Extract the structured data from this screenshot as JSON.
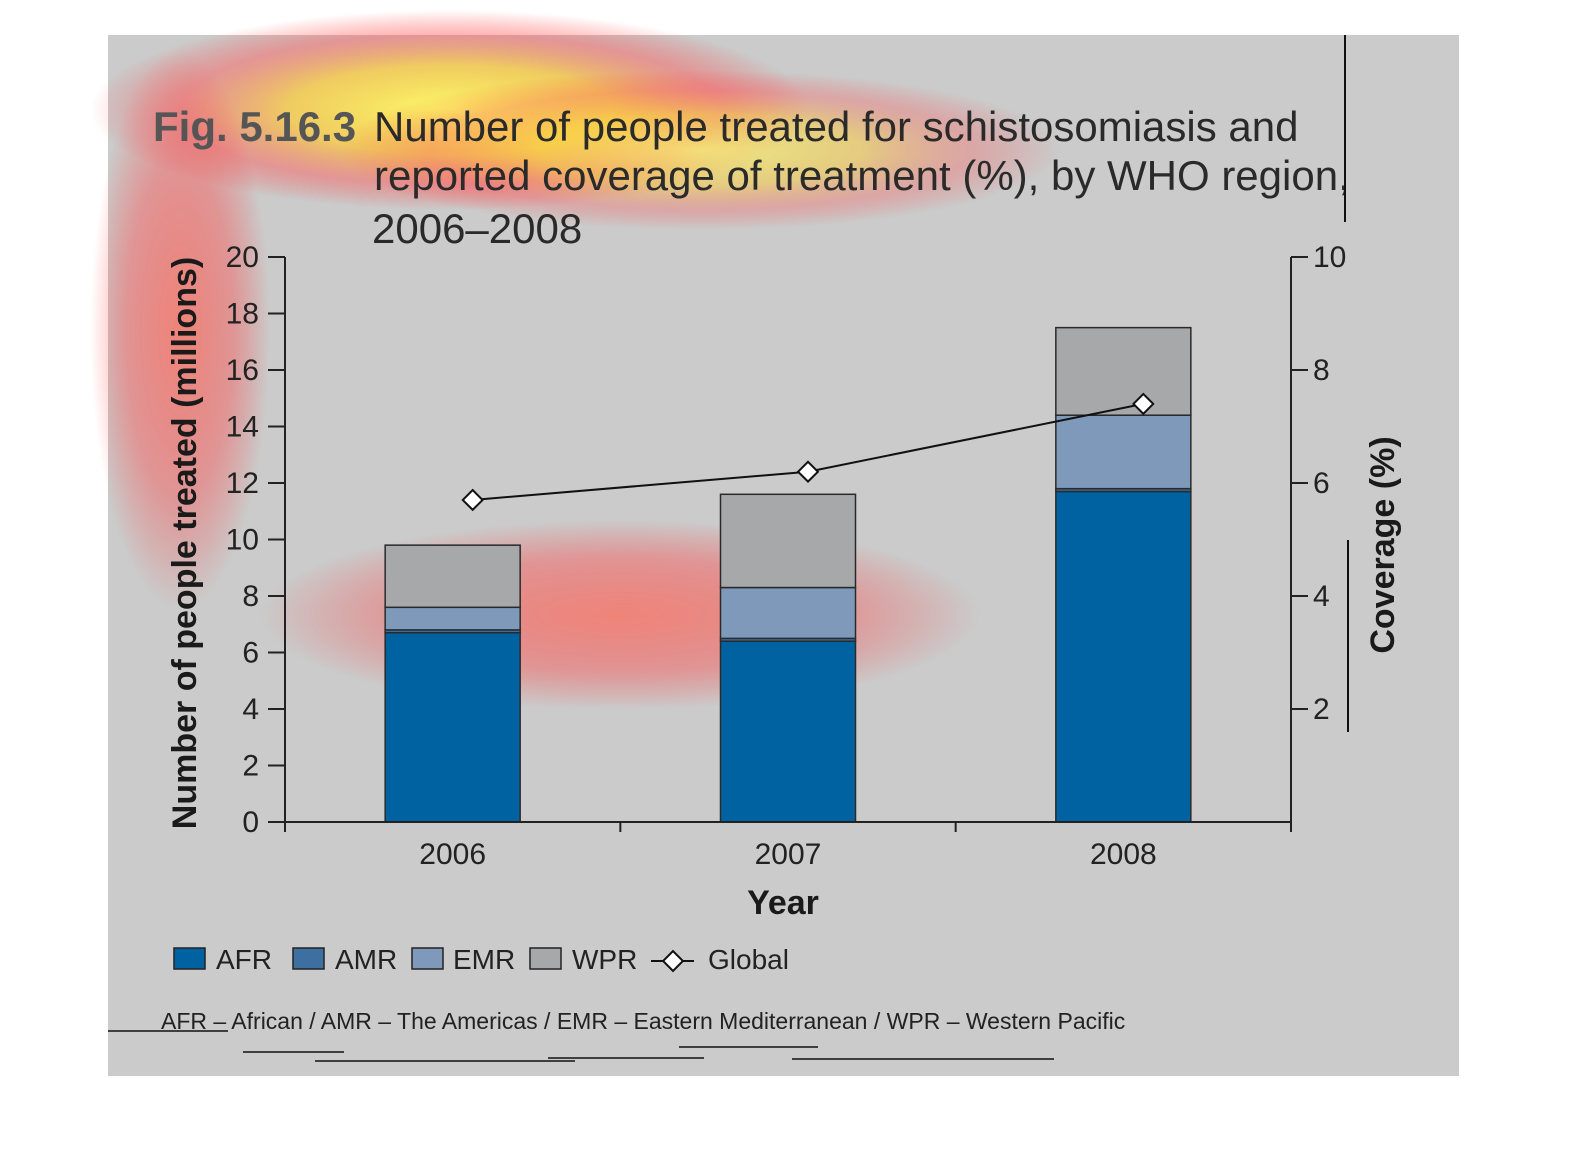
{
  "figure": {
    "number": "Fig. 5.16.3",
    "title_lines": [
      "Number of people treated for schistosomiasis and",
      "reported coverage of treatment (%), by WHO region,",
      "2006–2008"
    ],
    "footnote": "AFR – African / AMR – The Americas / EMR – Eastern Mediterranean / WPR – Western Pacific"
  },
  "chart_data": {
    "type": "bar",
    "stacked": true,
    "categories": [
      "2006",
      "2007",
      "2008"
    ],
    "xlabel": "Year",
    "ylabel": "Number of people treated (millions)",
    "y2label": "Coverage (%)",
    "ylim": [
      0,
      20
    ],
    "y2lim": [
      0,
      10
    ],
    "yticks": [
      0,
      2,
      4,
      6,
      8,
      10,
      12,
      14,
      16,
      18,
      20
    ],
    "y2ticks": [
      2,
      4,
      6,
      8,
      10
    ],
    "series": [
      {
        "name": "AFR",
        "color": "#0062a0",
        "values": [
          6.7,
          6.4,
          11.7
        ]
      },
      {
        "name": "AMR",
        "color": "#3d70a0",
        "values": [
          0.1,
          0.1,
          0.1
        ]
      },
      {
        "name": "EMR",
        "color": "#7f99bb",
        "values": [
          0.8,
          1.8,
          2.6
        ]
      },
      {
        "name": "WPR",
        "color": "#a7a8aa",
        "values": [
          2.2,
          3.3,
          3.1
        ]
      }
    ],
    "line_series": {
      "name": "Global",
      "axis": "right",
      "values": [
        5.7,
        6.2,
        7.4
      ]
    },
    "legend": {
      "position": "bottom-left",
      "items": [
        "AFR",
        "AMR",
        "EMR",
        "WPR",
        "Global"
      ]
    },
    "grid": false
  }
}
